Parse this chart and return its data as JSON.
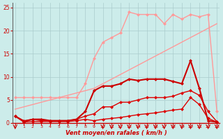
{
  "bg_color": "#ccecea",
  "grid_color": "#aacccc",
  "x_label": "Vent moyen/en rafales ( km/h )",
  "x_ticks": [
    0,
    1,
    2,
    3,
    4,
    5,
    6,
    7,
    8,
    9,
    10,
    11,
    12,
    13,
    14,
    15,
    16,
    17,
    18,
    19,
    20,
    21,
    22,
    23
  ],
  "ylim": [
    0,
    26
  ],
  "xlim": [
    -0.3,
    23.3
  ],
  "yticks": [
    0,
    5,
    10,
    15,
    20,
    25
  ],
  "lines": [
    {
      "x": [
        0,
        1,
        2,
        3,
        4,
        5,
        6,
        7,
        8,
        9,
        10,
        11,
        12,
        13,
        14,
        15,
        16,
        17,
        18,
        19,
        20,
        21,
        22,
        23
      ],
      "y": [
        3.0,
        3.5,
        4.0,
        4.5,
        5.0,
        5.5,
        6.0,
        6.5,
        7.0,
        7.5,
        8.5,
        9.5,
        10.5,
        11.5,
        12.5,
        13.5,
        14.5,
        15.5,
        16.5,
        17.5,
        18.5,
        19.5,
        20.5,
        21.5
      ],
      "color": "#ff9999",
      "marker": null,
      "markersize": 3,
      "linewidth": 1.0
    },
    {
      "x": [
        0,
        1,
        2,
        3,
        4,
        5,
        6,
        7,
        8,
        9,
        10,
        11,
        12,
        13,
        14,
        15,
        16,
        17,
        18,
        19,
        20,
        21,
        22,
        23
      ],
      "y": [
        5.5,
        5.5,
        5.5,
        5.5,
        5.5,
        5.5,
        5.5,
        5.5,
        8.5,
        14.0,
        17.5,
        18.5,
        19.5,
        24.0,
        23.5,
        23.5,
        23.5,
        21.5,
        23.5,
        22.5,
        23.5,
        23.0,
        23.5,
        2.5
      ],
      "color": "#ff9999",
      "marker": "D",
      "markersize": 2.5,
      "linewidth": 1.0
    },
    {
      "x": [
        0,
        1,
        2,
        3,
        4,
        5,
        6,
        7,
        8,
        9,
        10,
        11,
        12,
        13,
        14,
        15,
        16,
        17,
        18,
        19,
        20,
        21,
        22,
        23
      ],
      "y": [
        1.5,
        0.2,
        0.3,
        0.3,
        0.3,
        0.3,
        0.3,
        0.5,
        0.8,
        0.5,
        0.8,
        1.0,
        1.2,
        1.5,
        1.8,
        2.0,
        2.2,
        2.5,
        2.8,
        3.0,
        5.5,
        4.0,
        1.0,
        0.2
      ],
      "color": "#dd0000",
      "marker": "D",
      "markersize": 2.5,
      "linewidth": 1.0
    },
    {
      "x": [
        0,
        1,
        2,
        3,
        4,
        5,
        6,
        7,
        8,
        9,
        10,
        11,
        12,
        13,
        14,
        15,
        16,
        17,
        18,
        19,
        20,
        21,
        22,
        23
      ],
      "y": [
        1.5,
        0.5,
        0.8,
        0.5,
        0.5,
        0.5,
        0.5,
        0.8,
        1.5,
        2.0,
        3.5,
        3.5,
        4.5,
        4.5,
        5.0,
        5.5,
        5.5,
        5.5,
        5.8,
        6.5,
        7.0,
        6.0,
        2.5,
        0.3
      ],
      "color": "#dd0000",
      "marker": "D",
      "markersize": 2.5,
      "linewidth": 1.0
    },
    {
      "x": [
        0,
        1,
        2,
        3,
        4,
        5,
        6,
        7,
        8,
        9,
        10,
        11,
        12,
        13,
        14,
        15,
        16,
        17,
        18,
        19,
        20,
        21,
        22,
        23
      ],
      "y": [
        1.5,
        0.3,
        0.8,
        0.8,
        0.5,
        0.5,
        0.5,
        0.8,
        2.5,
        7.0,
        8.0,
        8.0,
        8.5,
        9.5,
        9.2,
        9.5,
        9.5,
        9.5,
        9.0,
        8.5,
        13.5,
        7.5,
        0.5,
        0.2
      ],
      "color": "#cc0000",
      "marker": "D",
      "markersize": 2.5,
      "linewidth": 1.5
    }
  ],
  "arrow_ticks": [
    0,
    10,
    11,
    12,
    13,
    14,
    15,
    16,
    17,
    18,
    19,
    20,
    21,
    22,
    23
  ]
}
